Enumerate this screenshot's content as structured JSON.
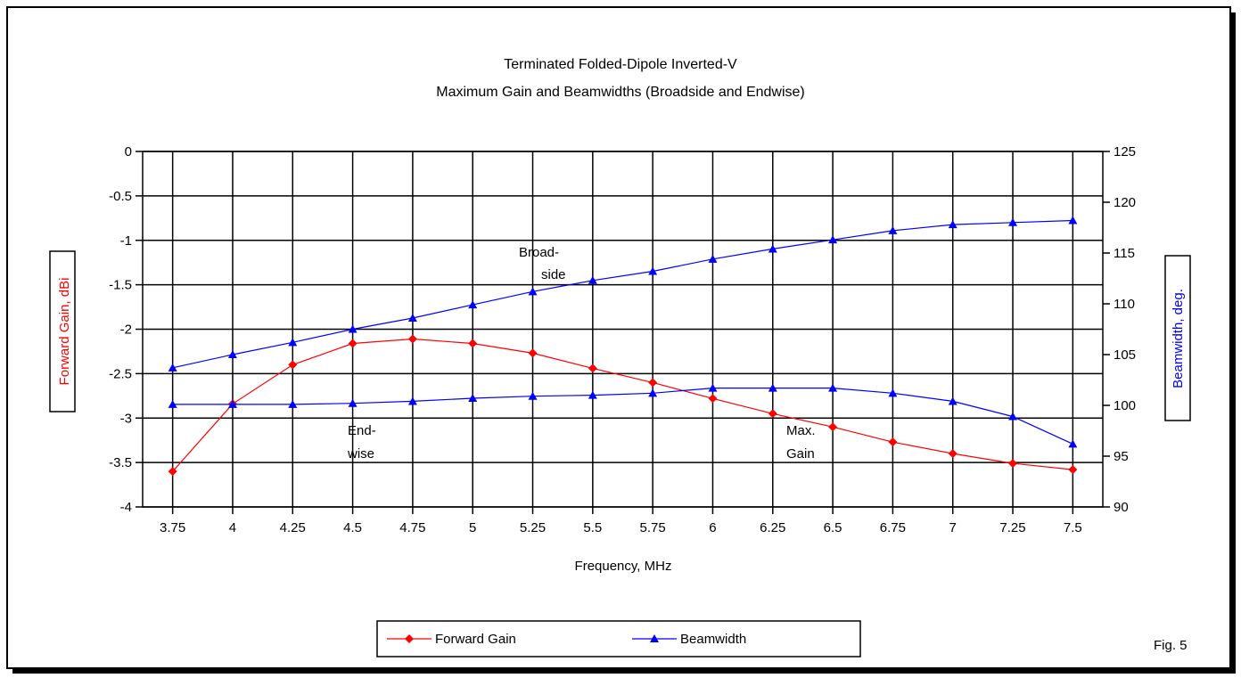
{
  "chart_data": {
    "type": "line",
    "title": [
      "Terminated Folded-Dipole Inverted-V",
      "Maximum Gain and Beamwidths (Broadside and Endwise)"
    ],
    "xlabel": "Frequency, MHz",
    "ylabel_left": "Forward Gain,  dBi",
    "ylabel_right": "Beamwidth,  deg.",
    "categories": [
      "3.75",
      "4",
      "4.25",
      "4.5",
      "4.75",
      "5",
      "5.25",
      "5.5",
      "5.75",
      "6",
      "6.25",
      "6.5",
      "6.75",
      "7",
      "7.25",
      "7.5"
    ],
    "ylim_left": [
      -4,
      0
    ],
    "ylim_right": [
      90,
      125
    ],
    "yticks_left": [
      "0",
      "-0.5",
      "-1",
      "-1.5",
      "-2",
      "-2.5",
      "-3",
      "-3.5",
      "-4"
    ],
    "yticks_right": [
      "125",
      "120",
      "115",
      "110",
      "105",
      "100",
      "95",
      "90"
    ],
    "grid": true,
    "series": [
      {
        "name": "Forward Gain",
        "axis": "left",
        "color": "#ff0000",
        "marker": "diamond",
        "values": [
          -3.6,
          -2.84,
          -2.4,
          -2.16,
          -2.11,
          -2.16,
          -2.27,
          -2.44,
          -2.6,
          -2.78,
          -2.95,
          -3.1,
          -3.27,
          -3.4,
          -3.51,
          -3.58
        ]
      },
      {
        "name": "Beamwidth",
        "label": [
          "Broad-",
          "side"
        ],
        "axis": "right",
        "color": "#0000ff",
        "marker": "triangle",
        "values": [
          103.7,
          105,
          106.2,
          107.5,
          108.6,
          109.9,
          111.2,
          112.3,
          113.2,
          114.4,
          115.4,
          116.3,
          117.2,
          117.8,
          118,
          118.2
        ]
      },
      {
        "name": "Beamwidth",
        "label": [
          "End-",
          "wise"
        ],
        "axis": "right",
        "color": "#0000ff",
        "marker": "triangle",
        "values": [
          100.1,
          100.1,
          100.1,
          100.2,
          100.4,
          100.7,
          100.9,
          101,
          101.2,
          101.7,
          101.7,
          101.7,
          101.2,
          100.4,
          98.9,
          96.2
        ]
      }
    ],
    "annotations": [
      {
        "lines": [
          "Broad-",
          "side"
        ]
      },
      {
        "lines": [
          "End-",
          "wise"
        ]
      },
      {
        "lines": [
          "Max.",
          "Gain"
        ]
      }
    ],
    "legend": {
      "placement": "bottom-center",
      "entries": [
        "Forward Gain",
        "Beamwidth"
      ]
    },
    "figure_label": "Fig. 5"
  }
}
